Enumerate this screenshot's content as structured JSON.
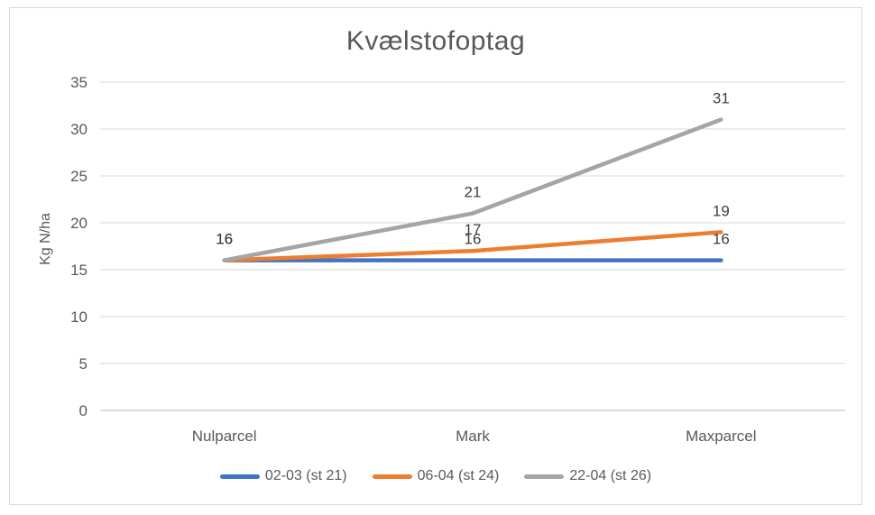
{
  "chart_data": {
    "type": "line",
    "title": "Kvælstofoptag",
    "ylabel": "Kg N/ha",
    "xlabel": "",
    "categories": [
      "Nulparcel",
      "Mark",
      "Maxparcel"
    ],
    "series": [
      {
        "name": "02-03 (st 21)",
        "color": "#4472C4",
        "values": [
          16,
          16,
          16
        ]
      },
      {
        "name": "06-04 (st 24)",
        "color": "#ED7D31",
        "values": [
          16,
          17,
          19
        ]
      },
      {
        "name": "22-04 (st 26)",
        "color": "#A5A5A5",
        "values": [
          16,
          21,
          31
        ]
      }
    ],
    "yticks": [
      0,
      5,
      10,
      15,
      20,
      25,
      30,
      35
    ],
    "ylim": [
      0,
      35
    ],
    "grid": true,
    "data_labels": true,
    "legend_position": "bottom",
    "colors": {
      "gridline": "#D9D9D9",
      "axis_line": "#D0D0D0",
      "axis_text": "#595959",
      "title_text": "#595959",
      "data_label_text": "#404040",
      "frame_border": "#D9D9D9",
      "background": "#FFFFFF"
    }
  }
}
